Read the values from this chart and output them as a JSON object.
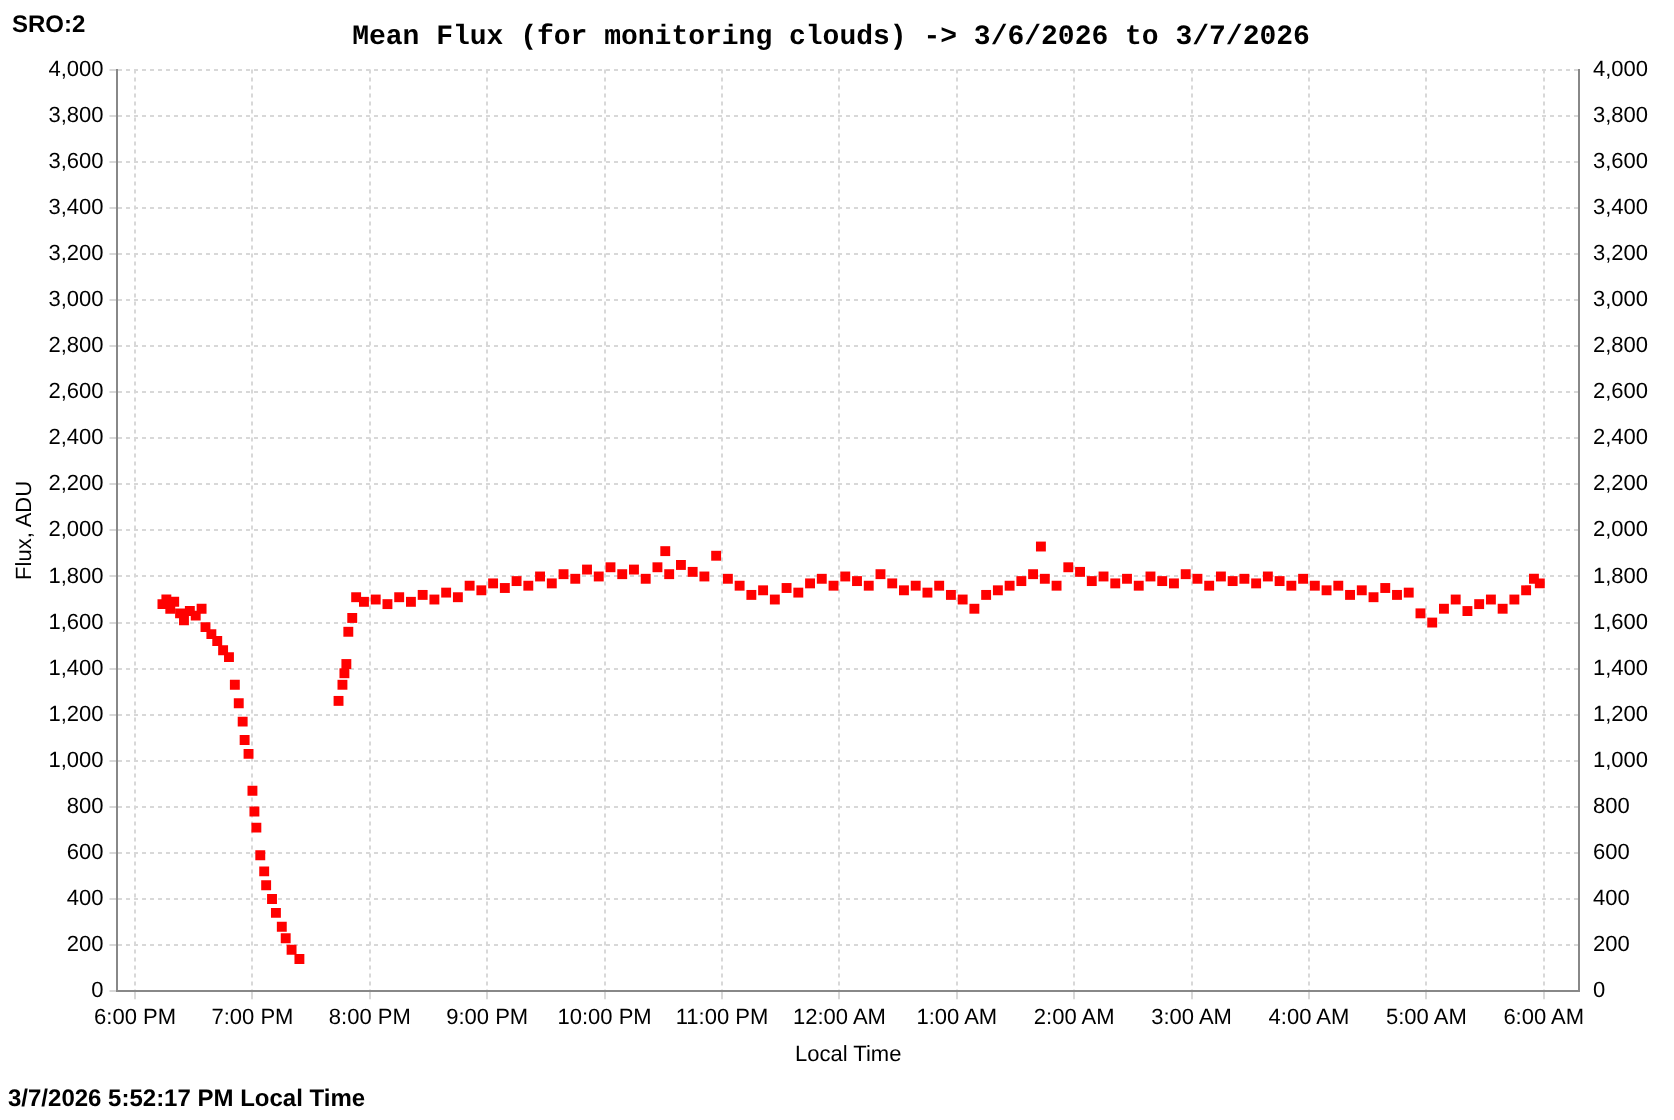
{
  "chart_data": {
    "type": "scatter",
    "title": "Mean Flux (for monitoring clouds) -> 3/6/2026 to 3/7/2026",
    "xlabel": "Local Time",
    "ylabel": "Flux, ADU",
    "annotations": [
      "SRO:2",
      "3/7/2026 5:52:17 PM Local Time"
    ],
    "x": [
      "2026-03-06T18:14",
      "2026-03-06T18:16",
      "2026-03-06T18:18",
      "2026-03-06T18:20",
      "2026-03-06T18:23",
      "2026-03-06T18:25",
      "2026-03-06T18:28",
      "2026-03-06T18:31",
      "2026-03-06T18:34",
      "2026-03-06T18:36",
      "2026-03-06T18:39",
      "2026-03-06T18:42",
      "2026-03-06T18:45",
      "2026-03-06T18:48",
      "2026-03-06T18:51",
      "2026-03-06T18:53",
      "2026-03-06T18:55",
      "2026-03-06T18:56",
      "2026-03-06T18:58",
      "2026-03-06T19:00",
      "2026-03-06T19:01",
      "2026-03-06T19:02",
      "2026-03-06T19:04",
      "2026-03-06T19:06",
      "2026-03-06T19:07",
      "2026-03-06T19:10",
      "2026-03-06T19:12",
      "2026-03-06T19:15",
      "2026-03-06T19:17",
      "2026-03-06T19:20",
      "2026-03-06T19:24",
      "2026-03-06T19:44",
      "2026-03-06T19:46",
      "2026-03-06T19:47",
      "2026-03-06T19:48",
      "2026-03-06T19:49",
      "2026-03-06T19:51",
      "2026-03-06T19:53",
      "2026-03-06T19:57",
      "2026-03-06T20:03",
      "2026-03-06T20:09",
      "2026-03-06T20:15",
      "2026-03-06T20:21",
      "2026-03-06T20:27",
      "2026-03-06T20:33",
      "2026-03-06T20:39",
      "2026-03-06T20:45",
      "2026-03-06T20:51",
      "2026-03-06T20:57",
      "2026-03-06T21:03",
      "2026-03-06T21:09",
      "2026-03-06T21:15",
      "2026-03-06T21:21",
      "2026-03-06T21:27",
      "2026-03-06T21:33",
      "2026-03-06T21:39",
      "2026-03-06T21:45",
      "2026-03-06T21:51",
      "2026-03-06T21:57",
      "2026-03-06T22:03",
      "2026-03-06T22:09",
      "2026-03-06T22:15",
      "2026-03-06T22:21",
      "2026-03-06T22:27",
      "2026-03-06T22:31",
      "2026-03-06T22:33",
      "2026-03-06T22:39",
      "2026-03-06T22:45",
      "2026-03-06T22:51",
      "2026-03-06T22:57",
      "2026-03-06T23:03",
      "2026-03-06T23:09",
      "2026-03-06T23:15",
      "2026-03-06T23:21",
      "2026-03-06T23:27",
      "2026-03-06T23:33",
      "2026-03-06T23:39",
      "2026-03-06T23:45",
      "2026-03-06T23:51",
      "2026-03-06T23:57",
      "2026-03-07T00:03",
      "2026-03-07T00:09",
      "2026-03-07T00:15",
      "2026-03-07T00:21",
      "2026-03-07T00:27",
      "2026-03-07T00:33",
      "2026-03-07T00:39",
      "2026-03-07T00:45",
      "2026-03-07T00:51",
      "2026-03-07T00:57",
      "2026-03-07T01:03",
      "2026-03-07T01:09",
      "2026-03-07T01:15",
      "2026-03-07T01:21",
      "2026-03-07T01:27",
      "2026-03-07T01:33",
      "2026-03-07T01:39",
      "2026-03-07T01:43",
      "2026-03-07T01:45",
      "2026-03-07T01:51",
      "2026-03-07T01:57",
      "2026-03-07T02:03",
      "2026-03-07T02:09",
      "2026-03-07T02:15",
      "2026-03-07T02:21",
      "2026-03-07T02:27",
      "2026-03-07T02:33",
      "2026-03-07T02:39",
      "2026-03-07T02:45",
      "2026-03-07T02:51",
      "2026-03-07T02:57",
      "2026-03-07T03:03",
      "2026-03-07T03:09",
      "2026-03-07T03:15",
      "2026-03-07T03:21",
      "2026-03-07T03:27",
      "2026-03-07T03:33",
      "2026-03-07T03:39",
      "2026-03-07T03:45",
      "2026-03-07T03:51",
      "2026-03-07T03:57",
      "2026-03-07T04:03",
      "2026-03-07T04:09",
      "2026-03-07T04:15",
      "2026-03-07T04:21",
      "2026-03-07T04:27",
      "2026-03-07T04:33",
      "2026-03-07T04:39",
      "2026-03-07T04:45",
      "2026-03-07T04:51",
      "2026-03-07T04:57",
      "2026-03-07T05:03",
      "2026-03-07T05:09",
      "2026-03-07T05:15",
      "2026-03-07T05:21",
      "2026-03-07T05:27",
      "2026-03-07T05:33",
      "2026-03-07T05:39",
      "2026-03-07T05:45",
      "2026-03-07T05:51",
      "2026-03-07T05:55",
      "2026-03-07T05:58"
    ],
    "series": [
      {
        "color": "#ff0000",
        "values": [
          1680,
          1700,
          1660,
          1690,
          1640,
          1610,
          1650,
          1630,
          1660,
          1580,
          1550,
          1520,
          1480,
          1450,
          1330,
          1250,
          1170,
          1090,
          1030,
          870,
          780,
          710,
          590,
          520,
          460,
          400,
          340,
          280,
          230,
          180,
          140,
          1260,
          1330,
          1380,
          1420,
          1560,
          1620,
          1710,
          1690,
          1700,
          1680,
          1710,
          1690,
          1720,
          1700,
          1730,
          1710,
          1760,
          1740,
          1770,
          1750,
          1780,
          1760,
          1800,
          1770,
          1810,
          1790,
          1830,
          1800,
          1840,
          1810,
          1830,
          1790,
          1840,
          1910,
          1810,
          1850,
          1820,
          1800,
          1890,
          1790,
          1760,
          1720,
          1740,
          1700,
          1750,
          1730,
          1770,
          1790,
          1760,
          1800,
          1780,
          1760,
          1810,
          1770,
          1740,
          1760,
          1730,
          1760,
          1720,
          1700,
          1660,
          1720,
          1740,
          1760,
          1780,
          1810,
          1930,
          1790,
          1760,
          1840,
          1820,
          1780,
          1800,
          1770,
          1790,
          1760,
          1800,
          1780,
          1770,
          1810,
          1790,
          1760,
          1800,
          1780,
          1790,
          1770,
          1800,
          1780,
          1760,
          1790,
          1760,
          1740,
          1760,
          1720,
          1740,
          1710,
          1750,
          1720,
          1730,
          1640,
          1600,
          1660,
          1700,
          1650,
          1680,
          1700,
          1660,
          1700,
          1740,
          1790,
          1770
        ]
      }
    ],
    "xlim": [
      "2026-03-06T17:51",
      "2026-03-07T06:18"
    ],
    "xticks": [
      {
        "value": "2026-03-06T18:00",
        "label": "6:00 PM"
      },
      {
        "value": "2026-03-06T19:00",
        "label": "7:00 PM"
      },
      {
        "value": "2026-03-06T20:00",
        "label": "8:00 PM"
      },
      {
        "value": "2026-03-06T21:00",
        "label": "9:00 PM"
      },
      {
        "value": "2026-03-06T22:00",
        "label": "10:00 PM"
      },
      {
        "value": "2026-03-06T23:00",
        "label": "11:00 PM"
      },
      {
        "value": "2026-03-07T00:00",
        "label": "12:00 AM"
      },
      {
        "value": "2026-03-07T01:00",
        "label": "1:00 AM"
      },
      {
        "value": "2026-03-07T02:00",
        "label": "2:00 AM"
      },
      {
        "value": "2026-03-07T03:00",
        "label": "3:00 AM"
      },
      {
        "value": "2026-03-07T04:00",
        "label": "4:00 AM"
      },
      {
        "value": "2026-03-07T05:00",
        "label": "5:00 AM"
      },
      {
        "value": "2026-03-07T06:00",
        "label": "6:00 AM"
      }
    ],
    "ylim": [
      0,
      4000
    ],
    "yticks": [
      0,
      200,
      400,
      600,
      800,
      {
        "value": 1000,
        "label": "1,000"
      },
      {
        "value": 1200,
        "label": "1,200"
      },
      {
        "value": 1400,
        "label": "1,400"
      },
      {
        "value": 1600,
        "label": "1,600"
      },
      {
        "value": 1800,
        "label": "1,800"
      },
      {
        "value": 2000,
        "label": "2,000"
      },
      {
        "value": 2200,
        "label": "2,200"
      },
      {
        "value": 2400,
        "label": "2,400"
      },
      {
        "value": 2600,
        "label": "2,600"
      },
      {
        "value": 2800,
        "label": "2,800"
      },
      {
        "value": 3000,
        "label": "3,000"
      },
      {
        "value": 3200,
        "label": "3,200"
      },
      {
        "value": 3400,
        "label": "3,400"
      },
      {
        "value": 3600,
        "label": "3,600"
      },
      {
        "value": 3800,
        "label": "3,800"
      },
      {
        "value": 4000,
        "label": "4,000"
      }
    ],
    "y2lim": [
      0,
      4000
    ],
    "y2ticks": [
      0,
      200,
      400,
      600,
      800,
      {
        "value": 1000,
        "label": "1,000"
      },
      {
        "value": 1200,
        "label": "1,200"
      },
      {
        "value": 1400,
        "label": "1,400"
      },
      {
        "value": 1600,
        "label": "1,600"
      },
      {
        "value": 1800,
        "label": "1,800"
      },
      {
        "value": 2000,
        "label": "2,000"
      },
      {
        "value": 2200,
        "label": "2,200"
      },
      {
        "value": 2400,
        "label": "2,400"
      },
      {
        "value": 2600,
        "label": "2,600"
      },
      {
        "value": 2800,
        "label": "2,800"
      },
      {
        "value": 3000,
        "label": "3,000"
      },
      {
        "value": 3200,
        "label": "3,200"
      },
      {
        "value": 3400,
        "label": "3,400"
      },
      {
        "value": 3600,
        "label": "3,600"
      },
      {
        "value": 3800,
        "label": "3,800"
      },
      {
        "value": 4000,
        "label": "4,000"
      }
    ],
    "grid": true,
    "legend": false,
    "marker": "square"
  }
}
